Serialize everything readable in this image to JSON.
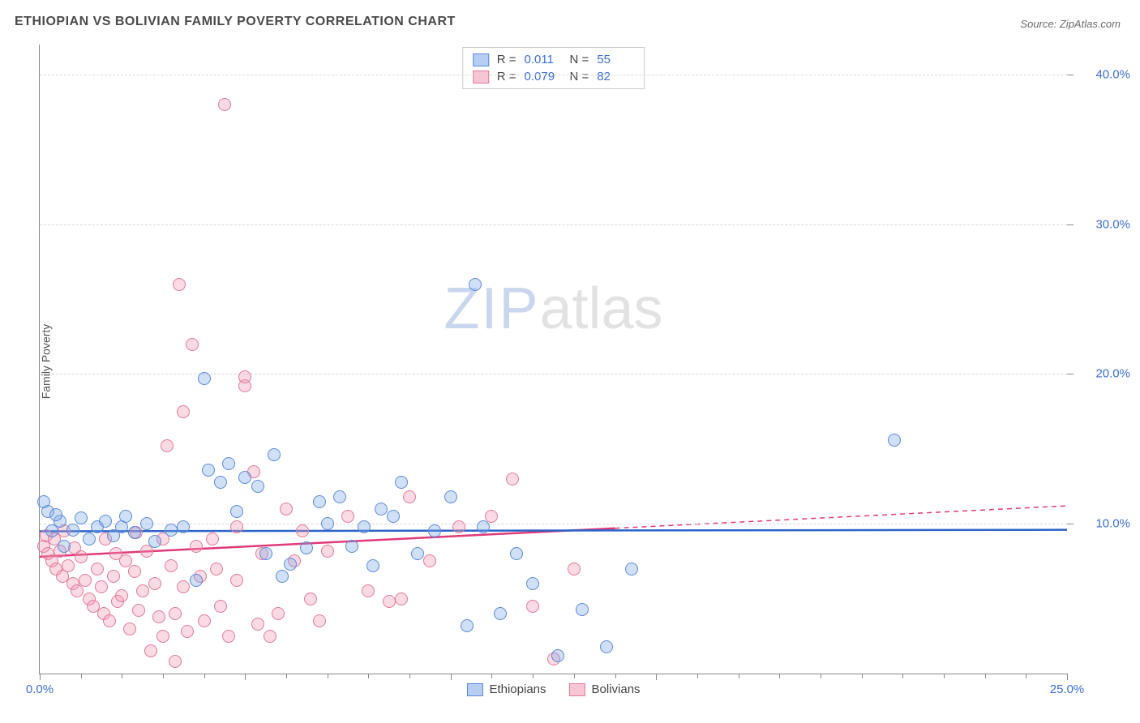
{
  "meta": {
    "title": "ETHIOPIAN VS BOLIVIAN FAMILY POVERTY CORRELATION CHART",
    "source_label": "Source:",
    "source_value": "ZipAtlas.com",
    "watermark_zip": "ZIP",
    "watermark_atlas": "atlas"
  },
  "chart": {
    "type": "scatter",
    "ylabel": "Family Poverty",
    "xlim": [
      0,
      25
    ],
    "ylim": [
      0,
      42
    ],
    "y_gridlines": [
      10,
      20,
      30,
      40
    ],
    "y_tick_labels": [
      "10.0%",
      "20.0%",
      "30.0%",
      "40.0%"
    ],
    "x_tick_values": [
      0,
      5,
      10,
      15,
      25
    ],
    "x_tick_labels": [
      "0.0%",
      "",
      "",
      "",
      "25.0%"
    ],
    "x_minor_ticks": [
      1,
      2,
      3,
      4,
      6,
      7,
      8,
      9,
      11,
      12,
      13,
      14,
      16,
      17,
      18,
      19,
      20,
      21,
      22,
      23,
      24
    ],
    "background_color": "#ffffff",
    "grid_color": "#d8d8d8",
    "axis_color": "#888888"
  },
  "series": {
    "ethiopians": {
      "label": "Ethiopians",
      "marker_color_fill": "rgba(120,165,230,0.35)",
      "marker_color_stroke": "#5a8bd8",
      "marker_radius": 8,
      "trend_color": "#2d64c8",
      "trend_width": 2.5,
      "trend_y_start": 9.5,
      "trend_y_end": 9.6,
      "trend_solid_x": 25,
      "R": "0.011",
      "N": "55",
      "points": [
        [
          0.2,
          10.8
        ],
        [
          0.3,
          9.5
        ],
        [
          0.5,
          10.2
        ],
        [
          0.6,
          8.5
        ],
        [
          0.8,
          9.6
        ],
        [
          1.0,
          10.4
        ],
        [
          1.2,
          9.0
        ],
        [
          1.4,
          9.8
        ],
        [
          1.6,
          10.2
        ],
        [
          1.8,
          9.2
        ],
        [
          2.0,
          9.8
        ],
        [
          2.3,
          9.4
        ],
        [
          2.6,
          10.0
        ],
        [
          2.8,
          8.8
        ],
        [
          3.2,
          9.6
        ],
        [
          3.5,
          9.8
        ],
        [
          3.8,
          6.2
        ],
        [
          4.0,
          19.7
        ],
        [
          4.1,
          13.6
        ],
        [
          4.4,
          12.8
        ],
        [
          4.6,
          14.0
        ],
        [
          4.8,
          10.8
        ],
        [
          5.0,
          13.1
        ],
        [
          5.3,
          12.5
        ],
        [
          5.5,
          8.0
        ],
        [
          5.7,
          14.6
        ],
        [
          5.9,
          6.5
        ],
        [
          6.1,
          7.3
        ],
        [
          6.5,
          8.4
        ],
        [
          6.8,
          11.5
        ],
        [
          7.0,
          10.0
        ],
        [
          7.3,
          11.8
        ],
        [
          7.6,
          8.5
        ],
        [
          7.9,
          9.8
        ],
        [
          8.1,
          7.2
        ],
        [
          8.3,
          11.0
        ],
        [
          8.6,
          10.5
        ],
        [
          8.8,
          12.8
        ],
        [
          9.2,
          8.0
        ],
        [
          9.6,
          9.5
        ],
        [
          10.0,
          11.8
        ],
        [
          10.4,
          3.2
        ],
        [
          10.6,
          26.0
        ],
        [
          10.8,
          9.8
        ],
        [
          11.2,
          4.0
        ],
        [
          11.6,
          8.0
        ],
        [
          12.0,
          6.0
        ],
        [
          12.6,
          1.2
        ],
        [
          13.2,
          4.3
        ],
        [
          13.8,
          1.8
        ],
        [
          14.4,
          7.0
        ],
        [
          20.8,
          15.6
        ],
        [
          0.1,
          11.5
        ],
        [
          0.4,
          10.6
        ],
        [
          2.1,
          10.5
        ]
      ]
    },
    "bolivians": {
      "label": "Bolivians",
      "marker_color_fill": "rgba(240,150,175,0.35)",
      "marker_color_stroke": "#e07a9a",
      "marker_radius": 8,
      "trend_color": "#e03a7a",
      "trend_width": 2.5,
      "trend_y_start": 7.8,
      "trend_y_end": 11.2,
      "trend_solid_x": 14,
      "R": "0.079",
      "N": "82",
      "points": [
        [
          0.1,
          8.5
        ],
        [
          0.15,
          9.2
        ],
        [
          0.2,
          8.0
        ],
        [
          0.3,
          7.5
        ],
        [
          0.35,
          9.0
        ],
        [
          0.4,
          7.0
        ],
        [
          0.5,
          8.2
        ],
        [
          0.55,
          6.5
        ],
        [
          0.6,
          9.5
        ],
        [
          0.7,
          7.2
        ],
        [
          0.8,
          6.0
        ],
        [
          0.85,
          8.4
        ],
        [
          0.9,
          5.5
        ],
        [
          1.0,
          7.8
        ],
        [
          1.1,
          6.2
        ],
        [
          1.2,
          5.0
        ],
        [
          1.3,
          4.5
        ],
        [
          1.4,
          7.0
        ],
        [
          1.5,
          5.8
        ],
        [
          1.55,
          4.0
        ],
        [
          1.6,
          9.0
        ],
        [
          1.7,
          3.5
        ],
        [
          1.8,
          6.5
        ],
        [
          1.85,
          8.0
        ],
        [
          1.9,
          4.8
        ],
        [
          2.0,
          5.2
        ],
        [
          2.1,
          7.5
        ],
        [
          2.2,
          3.0
        ],
        [
          2.3,
          6.8
        ],
        [
          2.35,
          9.4
        ],
        [
          2.4,
          4.2
        ],
        [
          2.5,
          5.5
        ],
        [
          2.6,
          8.2
        ],
        [
          2.7,
          1.5
        ],
        [
          2.8,
          6.0
        ],
        [
          2.9,
          3.8
        ],
        [
          3.0,
          9.0
        ],
        [
          3.0,
          2.5
        ],
        [
          3.1,
          15.2
        ],
        [
          3.2,
          7.2
        ],
        [
          3.3,
          4.0
        ],
        [
          3.3,
          0.8
        ],
        [
          3.4,
          26.0
        ],
        [
          3.5,
          5.8
        ],
        [
          3.5,
          17.5
        ],
        [
          3.6,
          2.8
        ],
        [
          3.7,
          22.0
        ],
        [
          3.8,
          8.5
        ],
        [
          3.9,
          6.5
        ],
        [
          4.0,
          3.5
        ],
        [
          4.2,
          9.0
        ],
        [
          4.3,
          7.0
        ],
        [
          4.4,
          4.5
        ],
        [
          4.5,
          38.0
        ],
        [
          4.6,
          2.5
        ],
        [
          4.8,
          9.8
        ],
        [
          4.8,
          6.2
        ],
        [
          5.0,
          19.2
        ],
        [
          5.0,
          19.8
        ],
        [
          5.2,
          13.5
        ],
        [
          5.3,
          3.3
        ],
        [
          5.4,
          8.0
        ],
        [
          5.6,
          2.5
        ],
        [
          5.8,
          4.0
        ],
        [
          6.0,
          11.0
        ],
        [
          6.2,
          7.5
        ],
        [
          6.4,
          9.5
        ],
        [
          6.6,
          5.0
        ],
        [
          6.8,
          3.5
        ],
        [
          7.0,
          8.2
        ],
        [
          7.5,
          10.5
        ],
        [
          8.0,
          5.5
        ],
        [
          8.5,
          4.8
        ],
        [
          8.8,
          5.0
        ],
        [
          9.0,
          11.8
        ],
        [
          9.5,
          7.5
        ],
        [
          10.2,
          9.8
        ],
        [
          11.0,
          10.5
        ],
        [
          11.5,
          13.0
        ],
        [
          12.0,
          4.5
        ],
        [
          12.5,
          1.0
        ],
        [
          13.0,
          7.0
        ]
      ]
    }
  },
  "legend_top": {
    "rows": [
      {
        "swatch_fill": "rgba(120,165,230,0.55)",
        "swatch_stroke": "#5a8bd8",
        "r_label": "R =",
        "r_val": "0.011",
        "n_label": "N =",
        "n_val": "55"
      },
      {
        "swatch_fill": "rgba(240,150,175,0.55)",
        "swatch_stroke": "#e07a9a",
        "r_label": "R =",
        "r_val": "0.079",
        "n_label": "N =",
        "n_val": "82"
      }
    ]
  },
  "legend_bottom": {
    "items": [
      {
        "swatch_fill": "rgba(120,165,230,0.55)",
        "swatch_stroke": "#5a8bd8",
        "label": "Ethiopians"
      },
      {
        "swatch_fill": "rgba(240,150,175,0.55)",
        "swatch_stroke": "#e07a9a",
        "label": "Bolivians"
      }
    ]
  }
}
